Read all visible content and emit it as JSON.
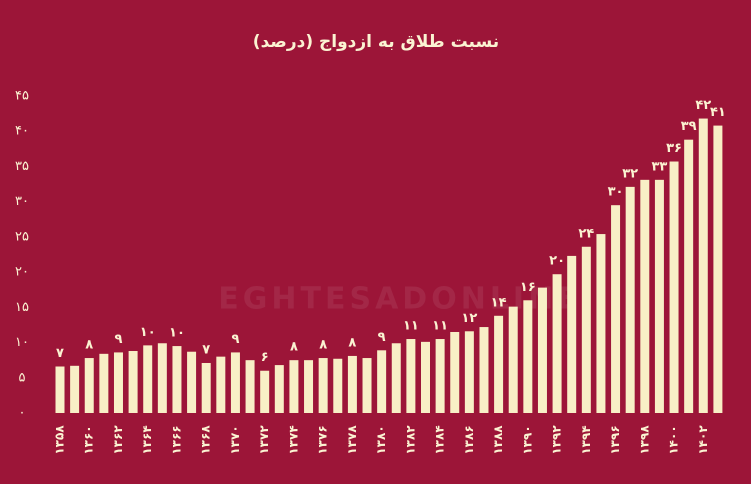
{
  "chart_data": {
    "type": "bar",
    "title": "نسبت طلاق به ازدواج (درصد)",
    "watermark": "EGHTESADONLINE",
    "categories": [
      "۱۳۵۸",
      null,
      "۱۳۶۰",
      null,
      "۱۳۶۲",
      null,
      "۱۳۶۴",
      null,
      "۱۳۶۶",
      null,
      "۱۳۶۸",
      null,
      "۱۳۷۰",
      null,
      "۱۳۷۲",
      null,
      "۱۳۷۴",
      null,
      "۱۳۷۶",
      null,
      "۱۳۷۸",
      null,
      "۱۳۸۰",
      null,
      "۱۳۸۲",
      null,
      "۱۳۸۴",
      null,
      "۱۳۸۶",
      null,
      "۱۳۸۸",
      null,
      "۱۳۹۰",
      null,
      "۱۳۹۲",
      null,
      "۱۳۹۴",
      null,
      "۱۳۹۶",
      null,
      "۱۳۹۸",
      null,
      "۱۴۰۰",
      null,
      "۱۴۰۲",
      null
    ],
    "values": [
      6.6,
      6.7,
      7.8,
      8.4,
      8.6,
      8.8,
      9.6,
      9.9,
      9.5,
      8.7,
      7.1,
      8.0,
      8.6,
      7.5,
      6.0,
      6.8,
      7.5,
      7.5,
      7.8,
      7.7,
      8.1,
      7.8,
      8.9,
      9.9,
      10.5,
      10.1,
      10.5,
      11.5,
      11.6,
      12.2,
      13.8,
      15.1,
      16.0,
      17.8,
      19.7,
      22.3,
      23.6,
      25.4,
      29.5,
      32.1,
      33.1,
      33.1,
      35.7,
      38.8,
      41.8,
      40.8
    ],
    "value_labels": [
      "۷",
      null,
      "۸",
      null,
      "۹",
      null,
      "۱۰",
      null,
      "۱۰",
      null,
      "۷",
      null,
      "۹",
      null,
      "۶",
      null,
      "۸",
      null,
      "۸",
      null,
      "۸",
      null,
      "۹",
      null,
      "۱۱",
      null,
      "۱۱",
      null,
      "۱۲",
      null,
      "۱۴",
      null,
      "۱۶",
      null,
      "۲۰",
      null,
      "۲۴",
      null,
      "۳۰",
      "۳۲",
      null,
      "۳۳",
      "۳۶",
      "۳۹",
      "۴۲",
      "۴۱"
    ],
    "color": "#f8efc6",
    "ylim": [
      0,
      45
    ],
    "yticks": [
      {
        "value": 0,
        "label": "۰"
      },
      {
        "value": 5,
        "label": "۵"
      },
      {
        "value": 10,
        "label": "۱۰"
      },
      {
        "value": 15,
        "label": "۱۵"
      },
      {
        "value": 20,
        "label": "۲۰"
      },
      {
        "value": 25,
        "label": "۲۵"
      },
      {
        "value": 30,
        "label": "۳۰"
      },
      {
        "value": 35,
        "label": "۳۵"
      },
      {
        "value": 40,
        "label": "۴۰"
      },
      {
        "value": 45,
        "label": "۴۵"
      }
    ],
    "grid": false
  }
}
